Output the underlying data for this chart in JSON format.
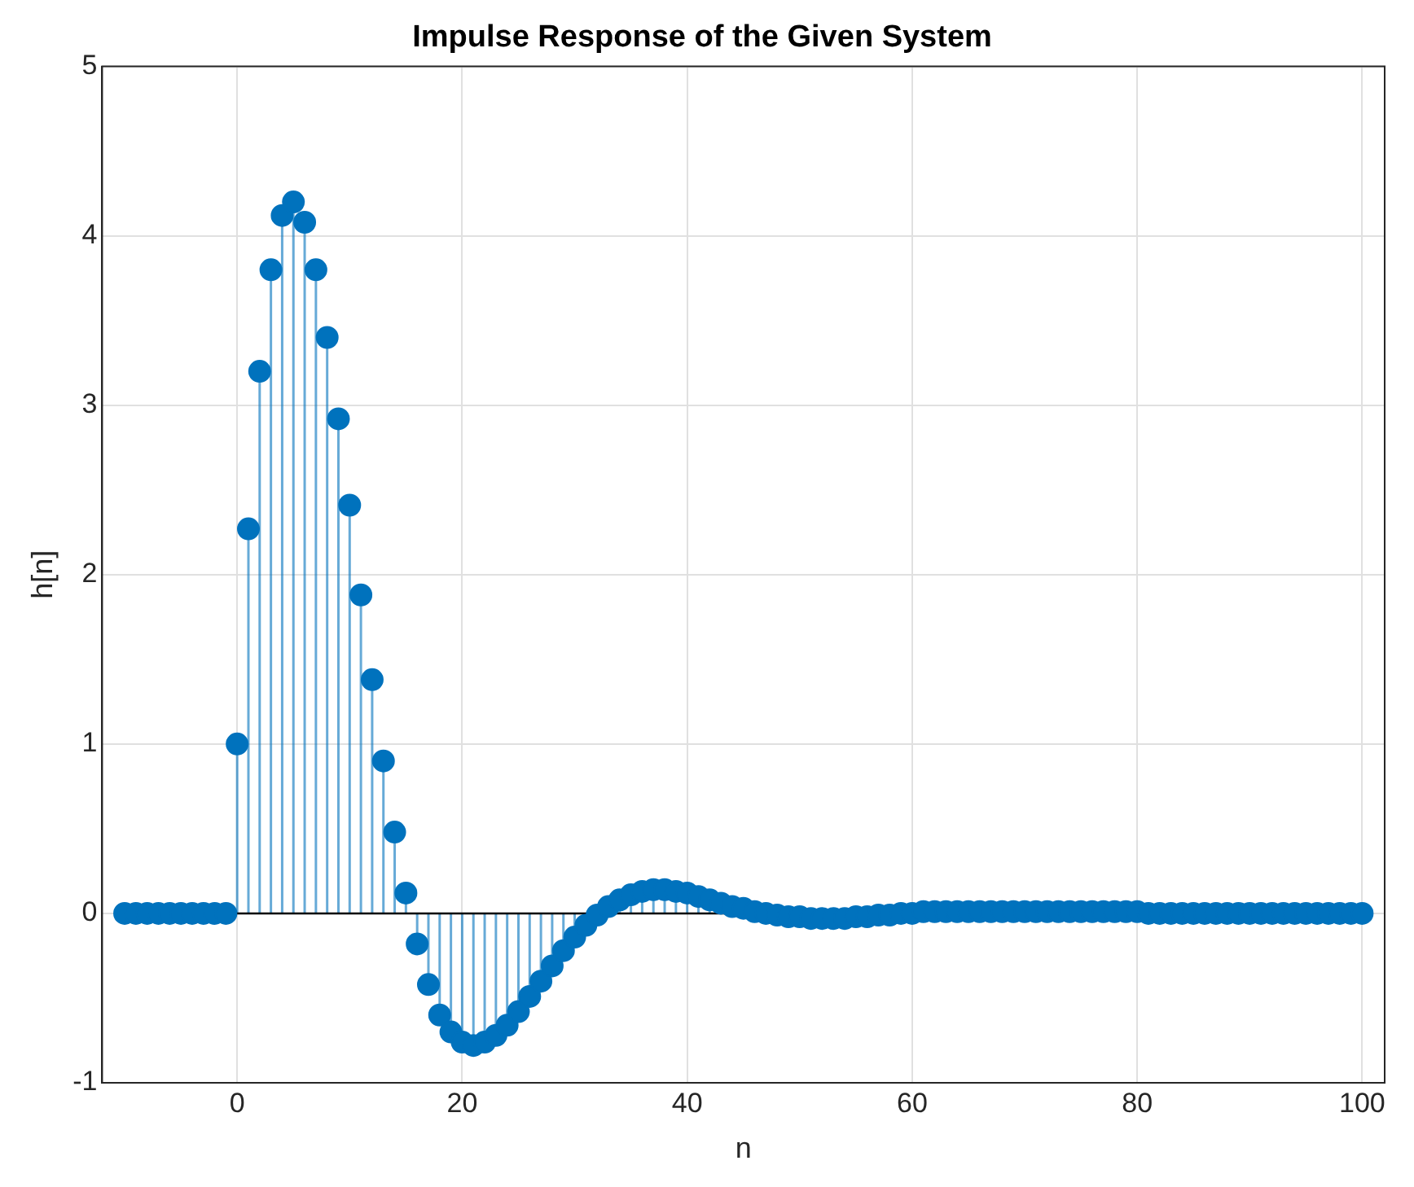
{
  "chart_data": {
    "type": "lollipop",
    "title": "Impulse Response of the Given System",
    "xlabel": "n",
    "ylabel": "h[n]",
    "x": [
      -10,
      -9,
      -8,
      -7,
      -6,
      -5,
      -4,
      -3,
      -2,
      -1,
      0,
      1,
      2,
      3,
      4,
      5,
      6,
      7,
      8,
      9,
      10,
      11,
      12,
      13,
      14,
      15,
      16,
      17,
      18,
      19,
      20,
      21,
      22,
      23,
      24,
      25,
      26,
      27,
      28,
      29,
      30,
      31,
      32,
      33,
      34,
      35,
      36,
      37,
      38,
      39,
      40,
      41,
      42,
      43,
      44,
      45,
      46,
      47,
      48,
      49,
      50,
      51,
      52,
      53,
      54,
      55,
      56,
      57,
      58,
      59,
      60,
      61,
      62,
      63,
      64,
      65,
      66,
      67,
      68,
      69,
      70,
      71,
      72,
      73,
      74,
      75,
      76,
      77,
      78,
      79,
      80,
      81,
      82,
      83,
      84,
      85,
      86,
      87,
      88,
      89,
      90,
      91,
      92,
      93,
      94,
      95,
      96,
      97,
      98,
      99,
      100
    ],
    "values": [
      0,
      0,
      0,
      0,
      0,
      0,
      0,
      0,
      0,
      0,
      1,
      2.27,
      3.2,
      3.8,
      4.12,
      4.2,
      4.08,
      3.8,
      3.4,
      2.92,
      2.41,
      1.88,
      1.38,
      0.9,
      0.48,
      0.12,
      -0.18,
      -0.42,
      -0.6,
      -0.7,
      -0.76,
      -0.78,
      -0.76,
      -0.72,
      -0.66,
      -0.58,
      -0.49,
      -0.4,
      -0.31,
      -0.22,
      -0.14,
      -0.07,
      -0.01,
      0.04,
      0.08,
      0.11,
      0.13,
      0.14,
      0.14,
      0.13,
      0.12,
      0.1,
      0.08,
      0.06,
      0.04,
      0.03,
      0.01,
      0,
      -0.01,
      -0.02,
      -0.02,
      -0.03,
      -0.03,
      -0.03,
      -0.03,
      -0.02,
      -0.02,
      -0.01,
      -0.01,
      0,
      0,
      0.01,
      0.01,
      0.01,
      0.01,
      0.01,
      0.01,
      0.01,
      0.01,
      0.01,
      0.01,
      0.01,
      0.01,
      0.01,
      0.01,
      0.01,
      0.01,
      0.01,
      0.01,
      0.01,
      0.01,
      0,
      0,
      0,
      0,
      0,
      0,
      0,
      0,
      0,
      0,
      0,
      0,
      0,
      0,
      0,
      0,
      0,
      0,
      0,
      0
    ],
    "color": "#0072bd",
    "marker": "circle",
    "xlim": [
      -12,
      102
    ],
    "ylim": [
      -1,
      5
    ],
    "xticks": [
      0,
      20,
      40,
      60,
      80,
      100
    ],
    "yticks": [
      -1,
      0,
      1,
      2,
      3,
      4,
      5
    ],
    "grid": true
  }
}
